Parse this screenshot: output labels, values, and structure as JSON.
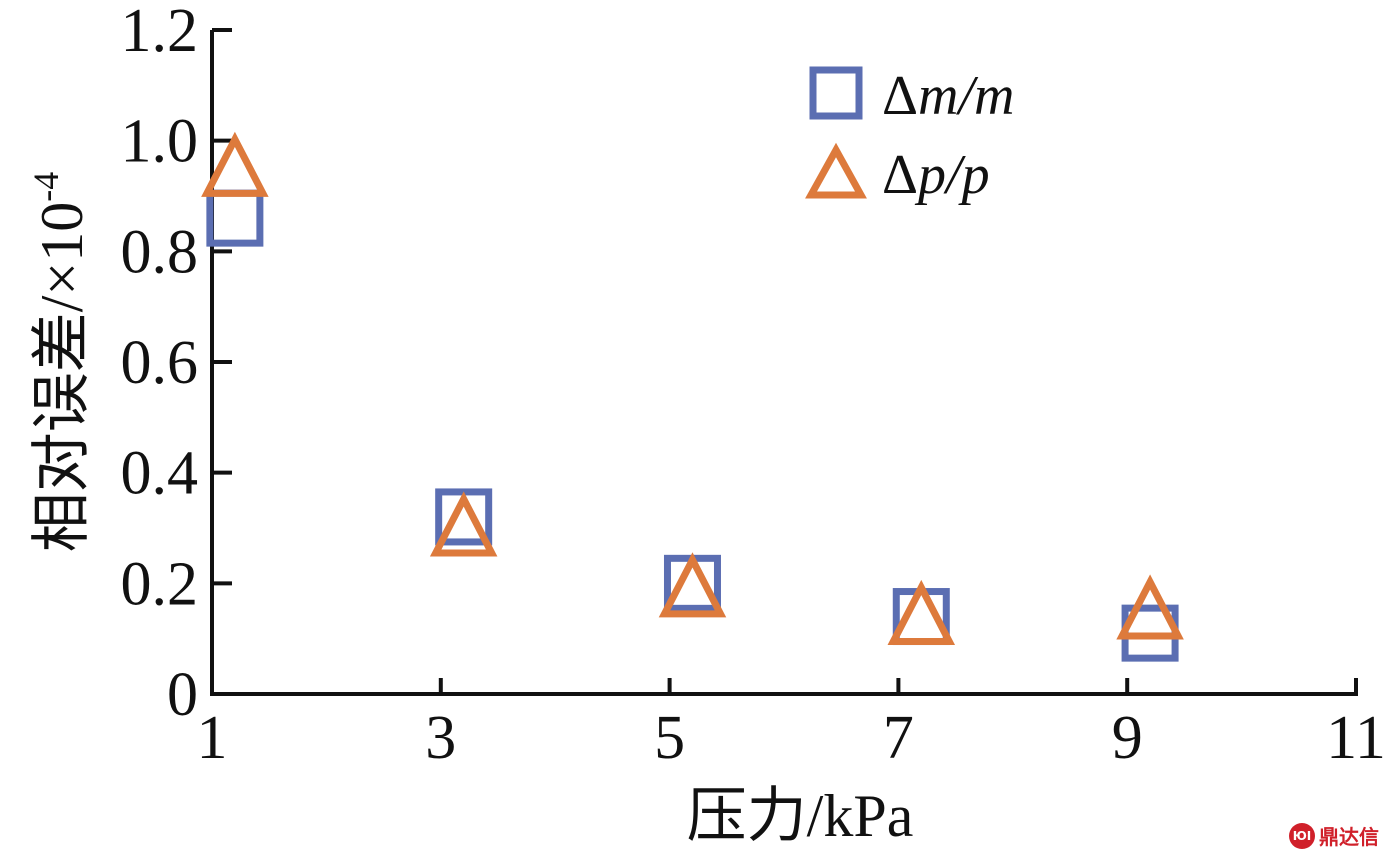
{
  "chart_data": {
    "type": "scatter",
    "xlabel": "压力/kPa",
    "ylabel": "相对误差/×10",
    "ylabel_exponent": "-4",
    "xlim": [
      1,
      11
    ],
    "ylim": [
      0,
      1.2
    ],
    "x_ticks": [
      1,
      3,
      5,
      7,
      9,
      11
    ],
    "y_ticks": [
      0,
      0.2,
      0.4,
      0.6,
      0.8,
      1.0,
      1.2
    ],
    "x_tick_labels": [
      "1",
      "3",
      "5",
      "7",
      "9",
      "11"
    ],
    "y_tick_labels": [
      "0",
      "0.2",
      "0.4",
      "0.6",
      "0.8",
      "1.0",
      "1.2"
    ],
    "legend_position": "top-right",
    "series": [
      {
        "name": "Δm/m",
        "legend_symbol": "Δ",
        "legend_formula": "m/m",
        "marker": "square",
        "color": "#5b6eb2",
        "x": [
          1.2,
          3.2,
          5.2,
          7.2,
          9.2
        ],
        "y": [
          0.86,
          0.32,
          0.2,
          0.14,
          0.11
        ]
      },
      {
        "name": "Δp/p",
        "legend_symbol": "Δ",
        "legend_formula": "p/p",
        "marker": "triangle",
        "color": "#dd7a3c",
        "x": [
          1.2,
          3.2,
          5.2,
          7.2,
          9.2
        ],
        "y": [
          0.95,
          0.3,
          0.19,
          0.14,
          0.15
        ]
      }
    ]
  },
  "watermark": {
    "logo_text": "ЮΙ",
    "text": "鼎达信"
  }
}
